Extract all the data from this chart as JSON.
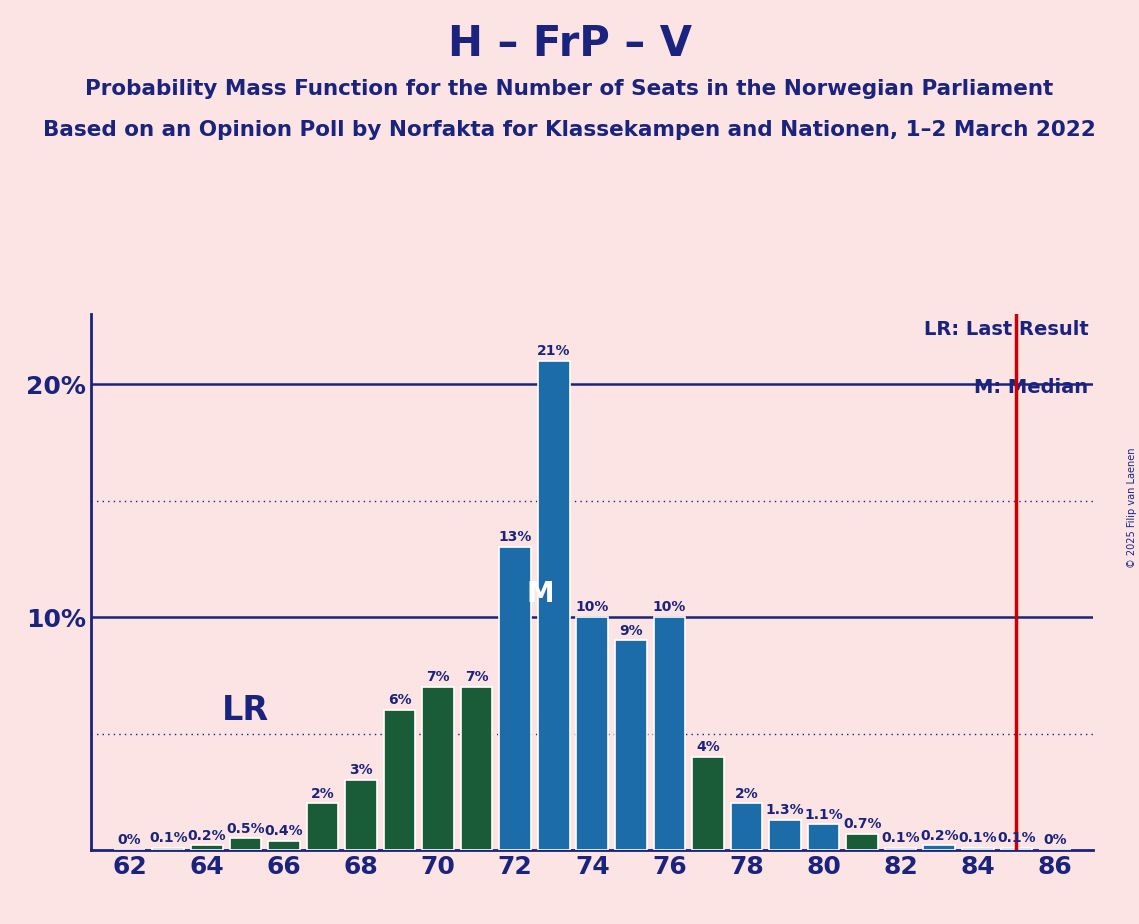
{
  "title": "H – FrP – V",
  "subtitle1": "Probability Mass Function for the Number of Seats in the Norwegian Parliament",
  "subtitle2": "Based on an Opinion Poll by Norfakta for Klassekampen and Nationen, 1–2 March 2022",
  "copyright": "© 2025 Filip van Laenen",
  "seats": [
    62,
    63,
    64,
    65,
    66,
    67,
    68,
    69,
    70,
    71,
    72,
    73,
    74,
    75,
    76,
    77,
    78,
    79,
    80,
    81,
    82,
    83,
    84,
    85,
    86
  ],
  "probabilities": [
    0.0,
    0.1,
    0.2,
    0.5,
    0.4,
    2.0,
    3.0,
    6.0,
    7.0,
    7.0,
    13.0,
    21.0,
    10.0,
    9.0,
    10.0,
    4.0,
    2.0,
    1.3,
    1.1,
    0.7,
    0.1,
    0.2,
    0.1,
    0.1,
    0.0
  ],
  "blue_color": "#1b6ca8",
  "dark_green_seats": [
    63,
    64,
    65,
    66,
    67,
    68,
    69,
    70,
    71,
    77,
    81
  ],
  "dark_green_color": "#1a5c38",
  "last_result": 85,
  "median": 73,
  "lr_label_seat": 65,
  "lr_label_prob": 6.0,
  "background_color": "#fce4e4",
  "bar_edge_color": "#ffffff",
  "axis_color": "#1a237e",
  "title_color": "#1a237e",
  "solid_yticks": [
    10,
    20
  ],
  "dotted_yticks": [
    5,
    15
  ],
  "ylim": [
    0,
    23
  ],
  "xlim": [
    61,
    87
  ],
  "xticks": [
    62,
    64,
    66,
    68,
    70,
    72,
    74,
    76,
    78,
    80,
    82,
    84,
    86
  ],
  "legend_lr_text": "LR: Last Result",
  "legend_m_text": "M: Median",
  "lr_color": "#cc0000",
  "median_label_color": "#ffffff",
  "bar_label_fontsize": 10,
  "title_fontsize": 30,
  "subtitle_fontsize": 15.5,
  "ytick_fontsize": 18,
  "xtick_fontsize": 18,
  "legend_fontsize": 14,
  "lr_label_fontsize": 24,
  "median_m_fontsize": 20,
  "copyright_fontsize": 7,
  "bar_width": 0.82
}
